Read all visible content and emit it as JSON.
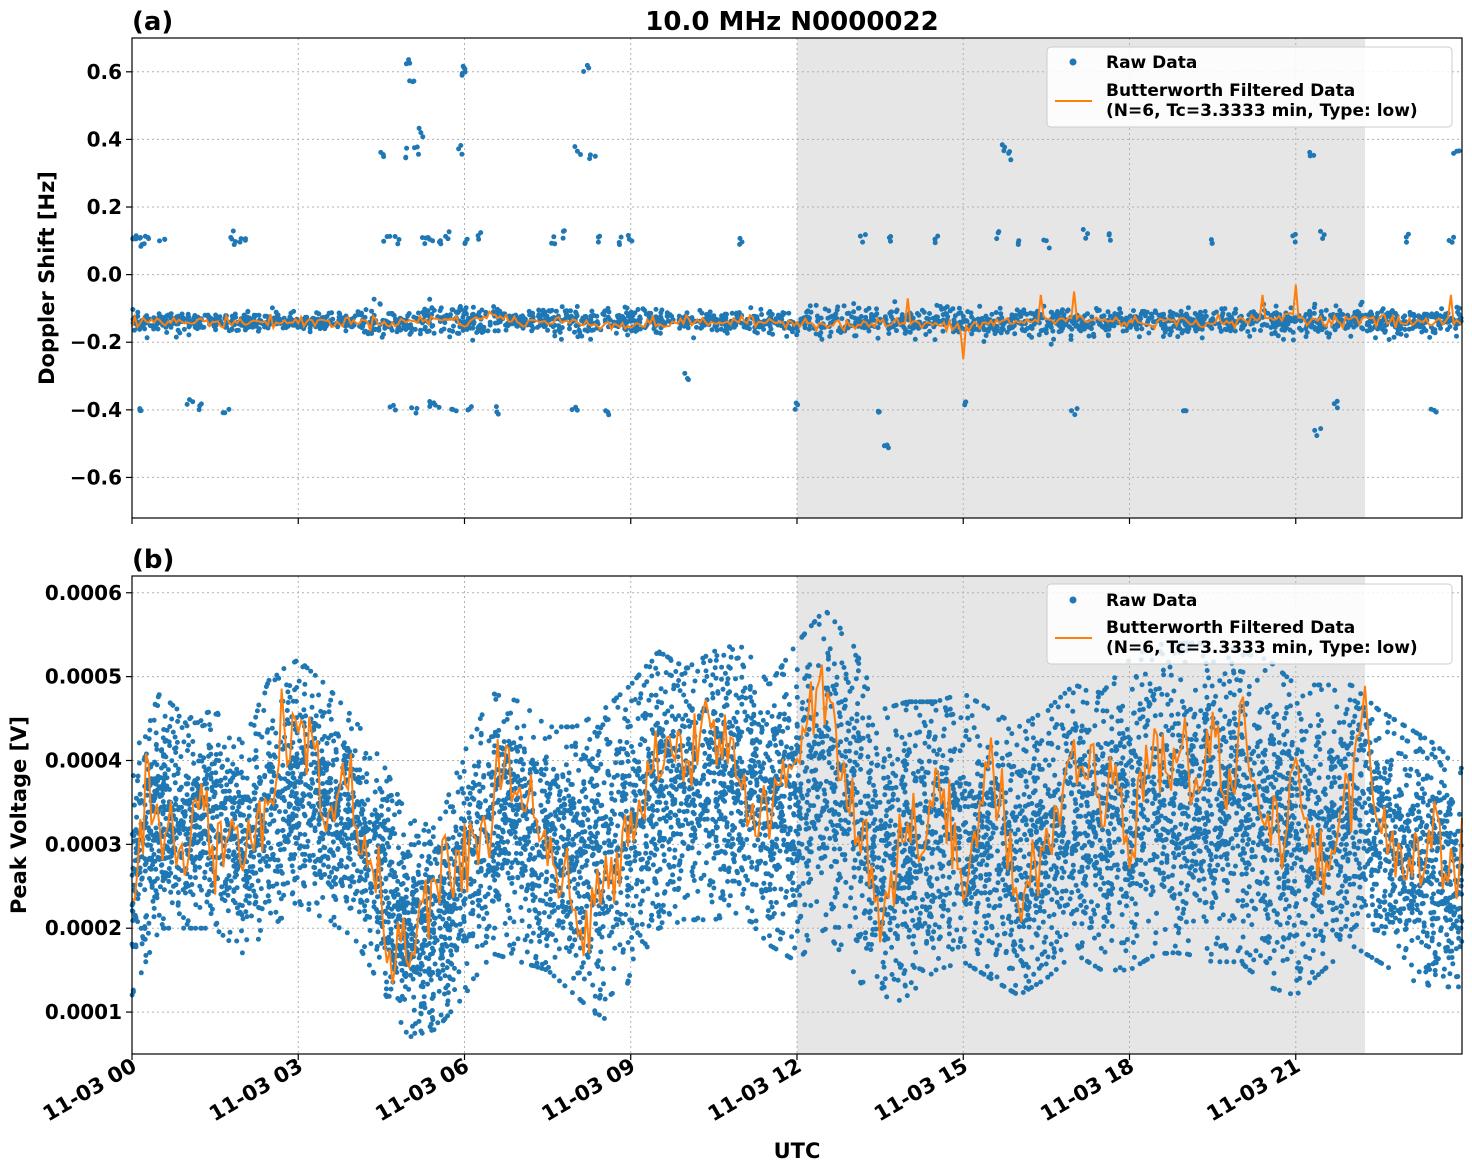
{
  "figure": {
    "title": "10.0 MHz N0000022",
    "xlabel": "UTC",
    "colors": {
      "raw": "#1f77b4",
      "filtered": "#ff7f0e",
      "shade": "#e6e6e6",
      "grid": "#b0b0b0"
    }
  },
  "chart_data": [
    {
      "panel": "(a)",
      "type": "scatter",
      "ylabel": "Doppler Shift [Hz]",
      "xlim": [
        "11-03 00:00",
        "11-03 24:00"
      ],
      "ylim": [
        -0.72,
        0.7
      ],
      "x_ticks": [
        "11-03 00",
        "11-03 03",
        "11-03 06",
        "11-03 09",
        "11-03 12",
        "11-03 15",
        "11-03 18",
        "11-03 21"
      ],
      "y_ticks": [
        "0.6",
        "0.4",
        "0.2",
        "0.0",
        "−0.2",
        "−0.4",
        "−0.6"
      ],
      "grid": true,
      "legend_position": "top-right",
      "shaded_interval_hours": [
        12.0,
        22.25
      ],
      "series": [
        {
          "name": "Raw Data",
          "kind": "scatter",
          "summary_by_hour": {
            "hours": [
              0,
              1,
              2,
              3,
              4,
              5,
              6,
              7,
              8,
              9,
              10,
              11,
              12,
              13,
              14,
              15,
              16,
              17,
              18,
              19,
              20,
              21,
              22,
              23,
              24
            ],
            "band_center": [
              -0.14,
              -0.14,
              -0.14,
              -0.14,
              -0.14,
              -0.14,
              -0.14,
              -0.14,
              -0.14,
              -0.14,
              -0.14,
              -0.14,
              -0.14,
              -0.14,
              -0.14,
              -0.14,
              -0.14,
              -0.14,
              -0.14,
              -0.14,
              -0.14,
              -0.14,
              -0.14,
              -0.14,
              -0.14
            ],
            "band_halfwidth": [
              0.03,
              0.03,
              0.03,
              0.03,
              0.04,
              0.06,
              0.05,
              0.04,
              0.05,
              0.04,
              0.035,
              0.035,
              0.04,
              0.05,
              0.04,
              0.04,
              0.05,
              0.04,
              0.04,
              0.04,
              0.04,
              0.045,
              0.045,
              0.045,
              0.045
            ]
          },
          "outliers": [
            [
              0.05,
              0.11
            ],
            [
              0.1,
              0.1
            ],
            [
              0.15,
              -0.39
            ],
            [
              0.2,
              0.09
            ],
            [
              0.3,
              0.12
            ],
            [
              0.55,
              0.1
            ],
            [
              1.05,
              -0.38
            ],
            [
              1.2,
              -0.39
            ],
            [
              1.7,
              -0.4
            ],
            [
              1.8,
              0.12
            ],
            [
              1.9,
              0.1
            ],
            [
              2.0,
              0.11
            ],
            [
              4.5,
              0.35
            ],
            [
              4.6,
              0.11
            ],
            [
              4.7,
              -0.39
            ],
            [
              4.8,
              0.1
            ],
            [
              4.9,
              0.36
            ],
            [
              5.0,
              0.63
            ],
            [
              5.05,
              0.56
            ],
            [
              5.1,
              -0.4
            ],
            [
              5.15,
              0.37
            ],
            [
              5.2,
              0.42
            ],
            [
              5.3,
              0.1
            ],
            [
              5.35,
              -0.39
            ],
            [
              5.4,
              0.11
            ],
            [
              5.5,
              -0.38
            ],
            [
              5.6,
              0.1
            ],
            [
              5.7,
              0.12
            ],
            [
              5.8,
              -0.4
            ],
            [
              5.9,
              0.37
            ],
            [
              5.95,
              0.62
            ],
            [
              6.0,
              0.6
            ],
            [
              6.05,
              0.1
            ],
            [
              6.1,
              -0.39
            ],
            [
              6.3,
              0.11
            ],
            [
              6.6,
              -0.4
            ],
            [
              7.6,
              0.1
            ],
            [
              7.8,
              0.12
            ],
            [
              8.0,
              -0.39
            ],
            [
              8.05,
              0.37
            ],
            [
              8.2,
              0.61
            ],
            [
              8.3,
              0.35
            ],
            [
              8.4,
              0.1
            ],
            [
              8.6,
              -0.4
            ],
            [
              8.8,
              0.1
            ],
            [
              9.0,
              0.11
            ],
            [
              10.0,
              -0.3
            ],
            [
              11.0,
              0.1
            ],
            [
              12.0,
              -0.39
            ],
            [
              13.2,
              0.11
            ],
            [
              13.5,
              -0.4
            ],
            [
              13.6,
              -0.5
            ],
            [
              13.7,
              0.11
            ],
            [
              14.5,
              0.1
            ],
            [
              15.0,
              -0.38
            ],
            [
              15.6,
              0.12
            ],
            [
              15.7,
              0.38
            ],
            [
              15.8,
              0.35
            ],
            [
              16.0,
              0.1
            ],
            [
              16.5,
              0.09
            ],
            [
              17.0,
              -0.4
            ],
            [
              17.2,
              0.12
            ],
            [
              17.6,
              0.11
            ],
            [
              19.0,
              -0.4
            ],
            [
              19.5,
              0.1
            ],
            [
              21.0,
              0.11
            ],
            [
              21.3,
              0.36
            ],
            [
              21.4,
              -0.47
            ],
            [
              21.5,
              0.12
            ],
            [
              21.7,
              -0.38
            ],
            [
              23.0,
              0.11
            ],
            [
              23.5,
              -0.4
            ],
            [
              23.8,
              0.1
            ],
            [
              23.9,
              0.36
            ]
          ]
        },
        {
          "name": "Butterworth Filtered Data\n(N=6, Tc=3.3333 min, Type: low)",
          "kind": "line",
          "x_hours": [
            0,
            1,
            2,
            3,
            4,
            5,
            5.5,
            6,
            6.5,
            7,
            8,
            9,
            10,
            11,
            12,
            13,
            14,
            15,
            15.5,
            16,
            17,
            18,
            19,
            20,
            21,
            21.5,
            22,
            23,
            24
          ],
          "y": [
            -0.14,
            -0.14,
            -0.14,
            -0.14,
            -0.14,
            -0.14,
            -0.13,
            -0.14,
            -0.12,
            -0.14,
            -0.14,
            -0.15,
            -0.14,
            -0.14,
            -0.14,
            -0.15,
            -0.14,
            -0.16,
            -0.14,
            -0.14,
            -0.13,
            -0.14,
            -0.14,
            -0.14,
            -0.12,
            -0.14,
            -0.13,
            -0.14,
            -0.14
          ],
          "spikes": [
            [
              15.0,
              -0.25
            ],
            [
              21.0,
              -0.03
            ],
            [
              16.4,
              -0.06
            ],
            [
              17.0,
              -0.05
            ],
            [
              20.4,
              -0.06
            ],
            [
              23.8,
              -0.06
            ],
            [
              14.0,
              -0.07
            ]
          ]
        }
      ]
    },
    {
      "panel": "(b)",
      "type": "scatter",
      "ylabel": "Peak Voltage [V]",
      "xlim": [
        "11-03 00:00",
        "11-03 24:00"
      ],
      "ylim": [
        5e-05,
        0.00062
      ],
      "x_ticks": [
        "11-03 00",
        "11-03 03",
        "11-03 06",
        "11-03 09",
        "11-03 12",
        "11-03 15",
        "11-03 18",
        "11-03 21"
      ],
      "y_ticks": [
        "0.0001",
        "0.0002",
        "0.0003",
        "0.0004",
        "0.0005",
        "0.0006"
      ],
      "grid": true,
      "legend_position": "top-right",
      "shaded_interval_hours": [
        12.0,
        22.25
      ],
      "series": [
        {
          "name": "Raw Data",
          "kind": "scatter",
          "envelope": {
            "x_hours": [
              0,
              0.5,
              1,
              1.5,
              2,
              2.5,
              3,
              3.5,
              4,
              4.5,
              5,
              5.5,
              6,
              6.5,
              7,
              7.5,
              8,
              8.5,
              9,
              9.5,
              10,
              10.5,
              11,
              11.5,
              12,
              12.5,
              13,
              13.5,
              14,
              14.5,
              15,
              15.5,
              16,
              16.5,
              17,
              17.5,
              18,
              18.5,
              19,
              19.5,
              20,
              20.5,
              21,
              21.5,
              22,
              22.5,
              23,
              23.5,
              24
            ],
            "upper": [
              0.0004,
              0.00048,
              0.00045,
              0.00046,
              0.00042,
              0.0005,
              0.00052,
              0.00049,
              0.00045,
              0.0004,
              0.00033,
              0.00032,
              0.00041,
              0.00048,
              0.00047,
              0.00044,
              0.00044,
              0.00046,
              0.00049,
              0.00053,
              0.00051,
              0.00053,
              0.00054,
              0.00049,
              0.00054,
              0.00058,
              0.00054,
              0.00046,
              0.00047,
              0.00047,
              0.00048,
              0.00046,
              0.00044,
              0.00046,
              0.00049,
              0.00048,
              0.00052,
              0.00054,
              0.00054,
              0.00054,
              0.00053,
              0.00052,
              0.00049,
              0.00049,
              0.00049,
              0.00046,
              0.00044,
              0.00042,
              0.00039
            ],
            "lower": [
              0.00012,
              0.0002,
              0.0002,
              0.0002,
              0.00017,
              0.0002,
              0.00023,
              0.00021,
              0.00019,
              0.00013,
              7e-05,
              8e-05,
              0.00012,
              0.00017,
              0.00016,
              0.00015,
              0.00012,
              9e-05,
              0.00014,
              0.0002,
              0.00021,
              0.00021,
              0.00022,
              0.00018,
              0.00016,
              0.0002,
              0.00015,
              0.0001,
              0.00012,
              0.00015,
              0.00016,
              0.00014,
              0.00012,
              0.00014,
              0.00017,
              0.00015,
              0.00015,
              0.00017,
              0.00017,
              0.00016,
              0.00016,
              0.00013,
              0.00012,
              0.00015,
              0.00018,
              0.00016,
              0.00014,
              0.00013,
              0.00013
            ]
          }
        },
        {
          "name": "Butterworth Filtered Data\n(N=6, Tc=3.3333 min, Type: low)",
          "kind": "line",
          "x_hours": [
            0,
            0.25,
            0.5,
            0.75,
            1,
            1.25,
            1.5,
            1.75,
            2,
            2.25,
            2.5,
            2.75,
            3,
            3.25,
            3.5,
            3.75,
            4,
            4.25,
            4.5,
            4.75,
            5,
            5.25,
            5.5,
            5.75,
            6,
            6.25,
            6.5,
            6.75,
            7,
            7.25,
            7.5,
            7.75,
            8,
            8.25,
            8.5,
            8.75,
            9,
            9.25,
            9.5,
            9.75,
            10,
            10.25,
            10.5,
            10.75,
            11,
            11.25,
            11.5,
            11.75,
            12,
            12.25,
            12.5,
            12.75,
            13,
            13.25,
            13.5,
            13.75,
            14,
            14.25,
            14.5,
            14.75,
            15,
            15.25,
            15.5,
            15.75,
            16,
            16.25,
            16.5,
            16.75,
            17,
            17.25,
            17.5,
            17.75,
            18,
            18.25,
            18.5,
            18.75,
            19,
            19.25,
            19.5,
            19.75,
            20,
            20.25,
            20.5,
            20.75,
            21,
            21.25,
            21.5,
            21.75,
            22,
            22.25,
            22.5,
            22.75,
            23,
            23.25,
            23.5,
            23.75,
            24
          ],
          "y": [
            0.00022,
            0.00038,
            0.00032,
            0.00033,
            0.00028,
            0.00035,
            0.00027,
            0.00033,
            0.00026,
            0.00034,
            0.00036,
            0.00044,
            0.00041,
            0.00045,
            0.00031,
            0.00038,
            0.00034,
            0.00029,
            0.00022,
            0.00018,
            0.00016,
            0.00022,
            0.00025,
            0.00026,
            0.0003,
            0.00028,
            0.00035,
            0.0004,
            0.00036,
            0.00032,
            0.00028,
            0.00026,
            0.00022,
            0.0002,
            0.00023,
            0.0003,
            0.00032,
            0.00037,
            0.00041,
            0.00043,
            0.00038,
            0.00046,
            0.0004,
            0.00042,
            0.00037,
            0.00032,
            0.00033,
            0.0004,
            0.00041,
            0.00047,
            0.0005,
            0.00042,
            0.00034,
            0.0003,
            0.00022,
            0.00026,
            0.00033,
            0.0003,
            0.00037,
            0.00032,
            0.00025,
            0.00036,
            0.0004,
            0.00033,
            0.00023,
            0.00027,
            0.00029,
            0.00035,
            0.00041,
            0.00038,
            0.00033,
            0.0004,
            0.00029,
            0.00037,
            0.00043,
            0.00036,
            0.00042,
            0.00037,
            0.00043,
            0.00037,
            0.00045,
            0.00037,
            0.00035,
            0.00029,
            0.00039,
            0.00032,
            0.00027,
            0.00032,
            0.00037,
            0.00046,
            0.00034,
            0.00028,
            0.0003,
            0.00025,
            0.00034,
            0.00026,
            0.00029
          ]
        }
      ]
    }
  ]
}
